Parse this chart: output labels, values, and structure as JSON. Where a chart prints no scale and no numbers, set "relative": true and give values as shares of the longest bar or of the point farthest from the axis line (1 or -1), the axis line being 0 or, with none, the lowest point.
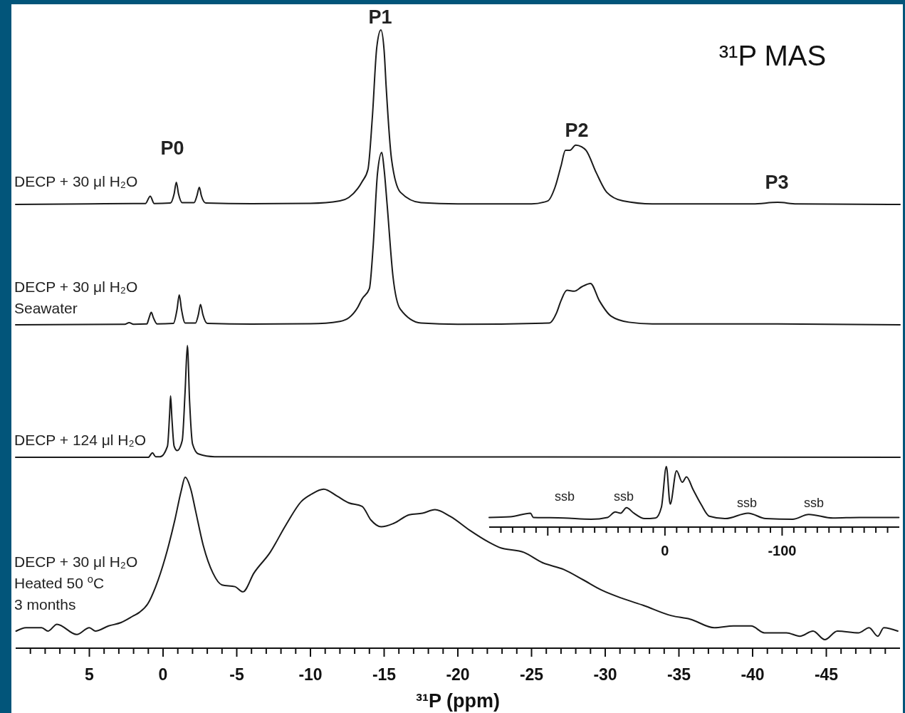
{
  "chart_data": [
    {
      "type": "line",
      "title": "³¹P MAS",
      "relative": true,
      "tick_labels": false,
      "xlim": [
        10,
        -50
      ],
      "x": [
        10,
        5,
        2,
        1.2,
        0.87,
        0.6,
        -0.5,
        -0.75,
        -0.9,
        -1.05,
        -1.3,
        -2.1,
        -2.3,
        -2.46,
        -2.6,
        -2.9,
        -6,
        -10,
        -12,
        -12.6,
        -13.2,
        -13.5,
        -13.9,
        -14.2,
        -14.5,
        -14.78,
        -15.0,
        -15.14,
        -15.5,
        -16.1,
        -17.5,
        -20,
        -25,
        -26.1,
        -26.6,
        -27.0,
        -27.3,
        -27.6,
        -28.0,
        -28.4,
        -28.7,
        -29.4,
        -30.1,
        -31.2,
        -33.2,
        -40,
        -41.7,
        -43,
        -50
      ],
      "series": [
        {
          "name": "DECP + 30 μl H₂O",
          "color": "#1a1a1a",
          "values": [
            0,
            0.003,
            0.005,
            0.005,
            0.047,
            0.005,
            0.008,
            0.06,
            0.127,
            0.06,
            0.01,
            0.01,
            0.05,
            0.098,
            0.05,
            0.008,
            0.004,
            0.006,
            0.02,
            0.04,
            0.09,
            0.13,
            0.2,
            0.5,
            0.9,
            1.0,
            0.88,
            0.67,
            0.26,
            0.07,
            0.01,
            0.003,
            0.003,
            0.02,
            0.1,
            0.22,
            0.31,
            0.31,
            0.34,
            0.33,
            0.31,
            0.18,
            0.07,
            0.02,
            0.003,
            0.003,
            0.012,
            0.003,
            0
          ]
        }
      ],
      "annotations": [
        "P0",
        "P1",
        "P2",
        "P3"
      ]
    },
    {
      "type": "line",
      "relative": true,
      "tick_labels": false,
      "xlim": [
        10,
        -50
      ],
      "x": [
        10,
        2.6,
        2.3,
        2.0,
        1.1,
        0.95,
        0.8,
        0.65,
        0.4,
        -0.7,
        -0.95,
        -1.1,
        -1.25,
        -1.5,
        -2.2,
        -2.4,
        -2.54,
        -2.7,
        -3.0,
        -6,
        -10,
        -12,
        -12.6,
        -13.2,
        -13.5,
        -14.0,
        -14.25,
        -14.55,
        -14.84,
        -15.0,
        -15.2,
        -15.6,
        -16.1,
        -17.5,
        -20,
        -26.2,
        -26.7,
        -27.0,
        -27.4,
        -27.9,
        -28.4,
        -29.0,
        -29.6,
        -30.4,
        -31.6,
        -33.2,
        -41.7,
        -50
      ],
      "series": [
        {
          "name": "DECP + 30 μl H₂O\nSeawater",
          "color": "#1a1a1a",
          "values": [
            0,
            0.003,
            0.012,
            0.003,
            0.005,
            0.04,
            0.072,
            0.04,
            0.005,
            0.008,
            0.09,
            0.174,
            0.09,
            0.01,
            0.01,
            0.06,
            0.118,
            0.06,
            0.008,
            0.004,
            0.006,
            0.02,
            0.04,
            0.1,
            0.15,
            0.21,
            0.45,
            0.88,
            1.0,
            0.9,
            0.7,
            0.28,
            0.09,
            0.01,
            0.003,
            0.01,
            0.07,
            0.14,
            0.2,
            0.195,
            0.22,
            0.24,
            0.14,
            0.05,
            0.015,
            0.005,
            0.005,
            0
          ]
        }
      ]
    },
    {
      "type": "line",
      "relative": true,
      "tick_labels": false,
      "xlim": [
        10,
        -50
      ],
      "x": [
        10,
        1,
        0.72,
        0.5,
        0.2,
        -0.3,
        -0.45,
        -0.51,
        -0.6,
        -0.75,
        -0.96,
        -1.3,
        -1.5,
        -1.65,
        -1.8,
        -2.0,
        -2.4,
        -3.5,
        -50
      ],
      "series": [
        {
          "name": "DECP + 124 μl H₂O",
          "color": "#1a1a1a",
          "values": [
            0,
            0,
            0.04,
            0.005,
            0.005,
            0.1,
            0.4,
            0.55,
            0.35,
            0.1,
            0.06,
            0.15,
            0.6,
            1.0,
            0.5,
            0.12,
            0.03,
            0.005,
            0
          ]
        }
      ]
    },
    {
      "type": "line",
      "relative": true,
      "tick_labels": "x",
      "xlim": [
        10,
        -50
      ],
      "xlabel": "³¹P (ppm)",
      "xticks": [
        {
          "value": 9,
          "label": null
        },
        {
          "value": 8,
          "label": null
        },
        {
          "value": 7,
          "label": null
        },
        {
          "value": 6,
          "label": null
        },
        5,
        {
          "value": 4,
          "label": null
        },
        {
          "value": 3,
          "label": null
        },
        {
          "value": 2,
          "label": null
        },
        {
          "value": 1,
          "label": null
        },
        0,
        {
          "value": -1,
          "label": null
        },
        {
          "value": -2,
          "label": null
        },
        {
          "value": -3,
          "label": null
        },
        {
          "value": -4,
          "label": null
        },
        -5,
        {
          "value": -6,
          "label": null
        },
        {
          "value": -7,
          "label": null
        },
        {
          "value": -8,
          "label": null
        },
        {
          "value": -9,
          "label": null
        },
        -10,
        {
          "value": -11,
          "label": null
        },
        {
          "value": -12,
          "label": null
        },
        {
          "value": -13,
          "label": null
        },
        {
          "value": -14,
          "label": null
        },
        -15,
        {
          "value": -16,
          "label": null
        },
        {
          "value": -17,
          "label": null
        },
        {
          "value": -18,
          "label": null
        },
        {
          "value": -19,
          "label": null
        },
        -20,
        {
          "value": -21,
          "label": null
        },
        {
          "value": -22,
          "label": null
        },
        {
          "value": -23,
          "label": null
        },
        {
          "value": -24,
          "label": null
        },
        -25,
        {
          "value": -26,
          "label": null
        },
        {
          "value": -27,
          "label": null
        },
        {
          "value": -28,
          "label": null
        },
        {
          "value": -29,
          "label": null
        },
        -30,
        {
          "value": -31,
          "label": null
        },
        {
          "value": -32,
          "label": null
        },
        {
          "value": -33,
          "label": null
        },
        {
          "value": -34,
          "label": null
        },
        -35,
        {
          "value": -36,
          "label": null
        },
        {
          "value": -37,
          "label": null
        },
        {
          "value": -38,
          "label": null
        },
        {
          "value": -39,
          "label": null
        },
        -40,
        {
          "value": -41,
          "label": null
        },
        {
          "value": -42,
          "label": null
        },
        {
          "value": -43,
          "label": null
        },
        {
          "value": -44,
          "label": null
        },
        -45,
        {
          "value": -46,
          "label": null
        },
        {
          "value": -47,
          "label": null
        },
        {
          "value": -48,
          "label": null
        },
        {
          "value": -49,
          "label": null
        }
      ],
      "x": [
        9.97,
        9.3,
        8.24,
        7.8,
        7.2,
        5.85,
        5.0,
        4.6,
        3.7,
        2.85,
        2.0,
        1.6,
        1.03,
        0.5,
        -0.15,
        -0.8,
        -1.23,
        -1.5,
        -1.88,
        -2.19,
        -2.73,
        -3.38,
        -4.0,
        -4.88,
        -5.42,
        -6.17,
        -7.26,
        -8.33,
        -9.4,
        -10.05,
        -10.9,
        -11.8,
        -12.6,
        -13.5,
        -14.1,
        -14.8,
        -15.65,
        -16.7,
        -17.6,
        -18.45,
        -19.5,
        -20.8,
        -22.1,
        -22.8,
        -24.5,
        -25.75,
        -27.2,
        -28.5,
        -29.75,
        -31.2,
        -32.6,
        -34.5,
        -35.75,
        -37.4,
        -38.7,
        -39.9,
        -40.8,
        -42.3,
        -43.2,
        -44.1,
        -44.9,
        -45.75,
        -47.2,
        -47.9,
        -48.5,
        -48.9,
        -49.85
      ],
      "series": [
        {
          "name": "DECP + 30 μl H₂O\nHeated 50 $^{o}$C\n3 months",
          "color": "#1a1a1a",
          "values": [
            0.1,
            0.12,
            0.12,
            0.1,
            0.14,
            0.08,
            0.12,
            0.1,
            0.13,
            0.15,
            0.19,
            0.21,
            0.26,
            0.36,
            0.53,
            0.75,
            0.92,
            1.0,
            0.93,
            0.81,
            0.6,
            0.44,
            0.37,
            0.36,
            0.33,
            0.44,
            0.56,
            0.72,
            0.86,
            0.9,
            0.93,
            0.89,
            0.85,
            0.83,
            0.75,
            0.71,
            0.73,
            0.78,
            0.79,
            0.81,
            0.77,
            0.69,
            0.62,
            0.59,
            0.56,
            0.5,
            0.46,
            0.4,
            0.34,
            0.29,
            0.25,
            0.19,
            0.17,
            0.12,
            0.13,
            0.13,
            0.09,
            0.09,
            0.07,
            0.1,
            0.05,
            0.1,
            0.09,
            0.12,
            0.07,
            0.12,
            0.1
          ]
        }
      ]
    },
    {
      "type": "line",
      "relative": true,
      "tick_labels": "x",
      "xlim": [
        150,
        -200
      ],
      "xticks": [
        {
          "value": 140,
          "label": null
        },
        {
          "value": 130,
          "label": null
        },
        {
          "value": 120,
          "label": null
        },
        {
          "value": 110,
          "label": null
        },
        {
          "value": 100,
          "label": null
        },
        {
          "value": 90,
          "label": null
        },
        {
          "value": 80,
          "label": null
        },
        {
          "value": 70,
          "label": null
        },
        {
          "value": 60,
          "label": null
        },
        {
          "value": 50,
          "label": null
        },
        {
          "value": 40,
          "label": null
        },
        {
          "value": 30,
          "label": null
        },
        {
          "value": 20,
          "label": null
        },
        {
          "value": 10,
          "label": null
        },
        0,
        {
          "value": -10,
          "label": null
        },
        {
          "value": -20,
          "label": null
        },
        {
          "value": -30,
          "label": null
        },
        {
          "value": -40,
          "label": null
        },
        {
          "value": -50,
          "label": null
        },
        {
          "value": -60,
          "label": null
        },
        {
          "value": -70,
          "label": null
        },
        {
          "value": -80,
          "label": null
        },
        {
          "value": -90,
          "label": null
        },
        -100,
        {
          "value": -110,
          "label": null
        },
        {
          "value": -120,
          "label": null
        },
        {
          "value": -130,
          "label": null
        },
        {
          "value": -140,
          "label": null
        },
        {
          "value": -150,
          "label": null
        },
        {
          "value": -160,
          "label": null
        },
        {
          "value": -170,
          "label": null
        },
        {
          "value": -180,
          "label": null
        },
        {
          "value": -190,
          "label": null
        }
      ],
      "x": [
        150,
        132,
        114.7,
        112.4,
        86,
        63,
        49,
        42.4,
        37.8,
        32.8,
        26.5,
        17.4,
        8.0,
        3.0,
        -1.2,
        -4.5,
        -9.9,
        -14.8,
        -18.4,
        -24,
        -31,
        -37.9,
        -51.6,
        -71,
        -86,
        -109,
        -122.7,
        -143.4,
        -166,
        -199.6
      ],
      "series": [
        {
          "color": "#1a1a1a",
          "values": [
            0.16,
            0.17,
            0.23,
            0.16,
            0.15,
            0.13,
            0.16,
            0.25,
            0.23,
            0.32,
            0.23,
            0.14,
            0.15,
            0.33,
            1.0,
            0.38,
            0.93,
            0.74,
            0.83,
            0.62,
            0.37,
            0.18,
            0.14,
            0.23,
            0.14,
            0.13,
            0.21,
            0.15,
            0.16,
            0.16
          ]
        }
      ],
      "annotations": [
        "ssb",
        "ssb",
        "ssb",
        "ssb"
      ]
    }
  ]
}
